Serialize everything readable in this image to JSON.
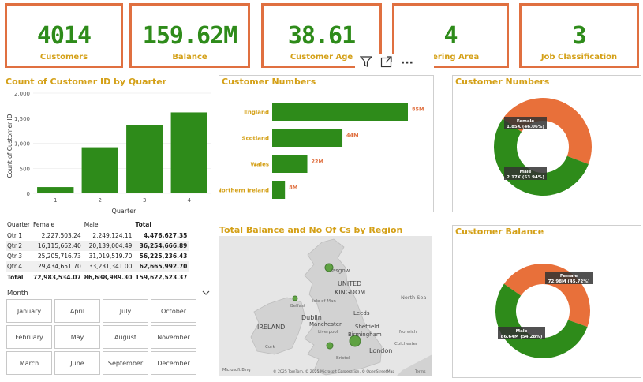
{
  "kpis": [
    {
      "value": "4014",
      "label": "Customers"
    },
    {
      "value": "159.62M",
      "label": "Balance"
    },
    {
      "value": "38.61",
      "label": "Customer Age"
    },
    {
      "value": "4",
      "label": "overing Area"
    },
    {
      "value": "3",
      "label": "Job Classification"
    }
  ],
  "toolbar": {
    "filter_icon": "funnel-icon",
    "focus_icon": "expand-icon",
    "more_label": "···"
  },
  "quarter_chart": {
    "title": "Count of Customer ID by Quarter",
    "ylabel": "Count of Customer ID",
    "xlabel": "Quarter",
    "y_ticks": [
      "0",
      "500",
      "1,000",
      "1,500",
      "2,000"
    ],
    "chart_data": {
      "type": "bar",
      "categories": [
        "1",
        "2",
        "3",
        "4"
      ],
      "values": [
        125,
        920,
        1355,
        1615
      ],
      "ylim": [
        0,
        2000
      ]
    }
  },
  "matrix": {
    "headers": [
      "Quarter",
      "Female",
      "Male",
      "Total"
    ],
    "rows": [
      [
        "Qtr 1",
        "2,227,503.24",
        "2,249,124.11",
        "4,476,627.35"
      ],
      [
        "Qtr 2",
        "16,115,662.40",
        "20,139,004.49",
        "36,254,666.89"
      ],
      [
        "Qtr 3",
        "25,205,716.73",
        "31,019,519.70",
        "56,225,236.43"
      ],
      [
        "Qtr 4",
        "29,434,651.70",
        "33,231,341.00",
        "62,665,992.70"
      ]
    ],
    "total": [
      "Total",
      "72,983,534.07",
      "86,638,989.30",
      "159,622,523.37"
    ]
  },
  "month_slicer": {
    "title": "Month",
    "months": [
      "January",
      "April",
      "July",
      "October",
      "February",
      "May",
      "August",
      "November",
      "March",
      "June",
      "September",
      "December"
    ]
  },
  "region_chart": {
    "title": "Customer Numbers",
    "chart_data": {
      "type": "bar",
      "categories": [
        "England",
        "Scotland",
        "Wales",
        "Northern Ireland"
      ],
      "values": [
        85,
        44,
        22,
        8
      ],
      "labels": [
        "85M",
        "44M",
        "22M",
        "8M"
      ]
    }
  },
  "map": {
    "title": "Total Balance and No Of Cs by Region",
    "labels": {
      "glasgow": "lasgow",
      "uk1": "UNITED",
      "uk2": "KINGDOM",
      "ireland": "IRELAND",
      "dublin": "Dublin",
      "manchester": "Manchester",
      "leeds": "Leeds",
      "sheffield": "Sheffield",
      "birmingham": "Birmingham",
      "london": "London",
      "northsea": "North Sea",
      "belfast": "Belfast",
      "isle": "Isle of Man",
      "liverpool": "Liverpool",
      "norwich": "Norwich",
      "colchester": "Colchester",
      "cork": "Cork",
      "bristol": "Bristol"
    },
    "credits": "© 2025 TomTom, © 2025 Microsoft Corporation, © OpenStreetMap",
    "bing": "Microsoft Bing",
    "terms": "Terms"
  },
  "donut_numbers": {
    "title": "Customer Numbers",
    "colors": {
      "female": "#e8703a",
      "male": "#2e8b1a"
    },
    "chart_data": {
      "type": "pie",
      "categories": [
        "Female",
        "Male"
      ],
      "values": [
        46.06,
        53.94
      ]
    },
    "female_label": "Female",
    "female_value": "1.85K (46.06%)",
    "male_label": "Male",
    "male_value": "2.17K (53.94%)"
  },
  "donut_balance": {
    "title": "Customer Balance",
    "chart_data": {
      "type": "pie",
      "categories": [
        "Female",
        "Male"
      ],
      "values": [
        45.72,
        54.28
      ]
    },
    "female_label": "Female",
    "female_value": "72.98M (45.72%)",
    "male_label": "Male",
    "male_value": "86.64M (54.28%)"
  }
}
